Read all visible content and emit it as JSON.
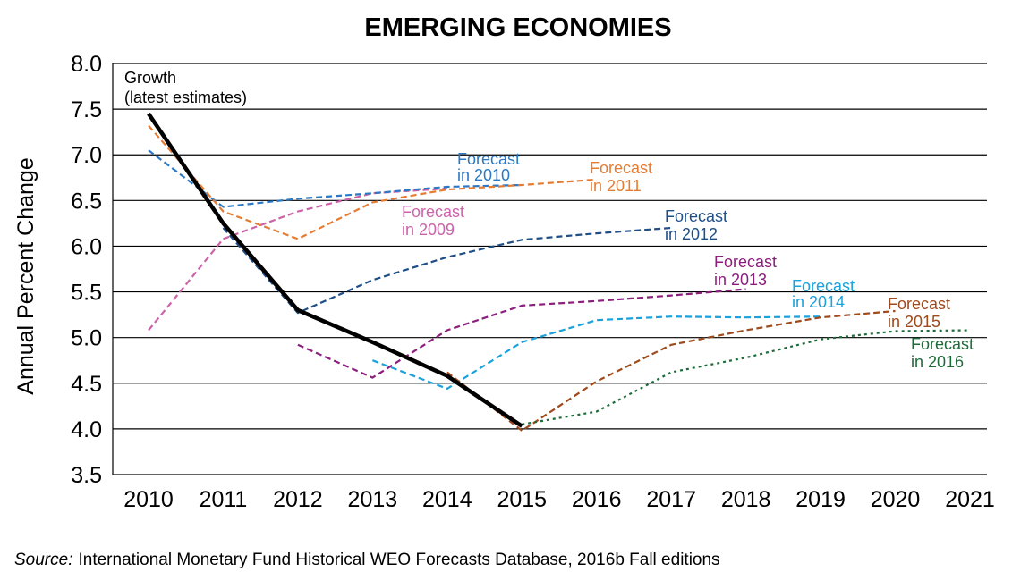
{
  "chart_data": {
    "type": "line",
    "title": "EMERGING ECONOMIES",
    "xlabel": "",
    "ylabel": "Annual Percent Change",
    "x": [
      2010,
      2011,
      2012,
      2013,
      2014,
      2015,
      2016,
      2017,
      2018,
      2019,
      2020,
      2021
    ],
    "xlim": [
      2010,
      2021
    ],
    "ylim": [
      3.5,
      8.0
    ],
    "yticks": [
      "3.5",
      "4.0",
      "4.5",
      "5.0",
      "5.5",
      "6.0",
      "6.5",
      "7.0",
      "7.5",
      "8.0"
    ],
    "grid": "horizontal",
    "series": [
      {
        "name": "Growth (latest estimates)",
        "label_lines": [
          "Growth",
          "(latest estimates)"
        ],
        "color": "#000000",
        "style": "solid",
        "points": [
          [
            2010,
            7.45
          ],
          [
            2011,
            6.25
          ],
          [
            2012,
            5.3
          ],
          [
            2013,
            4.95
          ],
          [
            2014,
            4.58
          ],
          [
            2015,
            4.03
          ]
        ]
      },
      {
        "name": "Forecast in 2009",
        "label_lines": [
          "Forecast",
          "in 2009"
        ],
        "color": "#cc63a8",
        "style": "dashed",
        "points": [
          [
            2010,
            5.08
          ],
          [
            2011,
            6.08
          ],
          [
            2012,
            6.38
          ],
          [
            2013,
            6.58
          ],
          [
            2014,
            6.63
          ]
        ]
      },
      {
        "name": "Forecast in 2010",
        "label_lines": [
          "Forecast",
          "in 2010"
        ],
        "color": "#2b78c4",
        "style": "dashed",
        "points": [
          [
            2010,
            7.05
          ],
          [
            2011,
            6.43
          ],
          [
            2012,
            6.52
          ],
          [
            2013,
            6.58
          ],
          [
            2014,
            6.65
          ],
          [
            2015,
            6.67
          ]
        ]
      },
      {
        "name": "Forecast in 2011",
        "label_lines": [
          "Forecast",
          "in 2011"
        ],
        "color": "#e57c34",
        "style": "dashed",
        "points": [
          [
            2010,
            7.32
          ],
          [
            2011,
            6.38
          ],
          [
            2012,
            6.08
          ],
          [
            2013,
            6.48
          ],
          [
            2014,
            6.62
          ],
          [
            2015,
            6.67
          ],
          [
            2016,
            6.73
          ]
        ]
      },
      {
        "name": "Forecast in 2012",
        "label_lines": [
          "Forecast",
          "in 2012"
        ],
        "color": "#1f4e87",
        "style": "dashed",
        "points": [
          [
            2011,
            6.2
          ],
          [
            2012,
            5.27
          ],
          [
            2013,
            5.63
          ],
          [
            2014,
            5.88
          ],
          [
            2015,
            6.07
          ],
          [
            2016,
            6.14
          ],
          [
            2017,
            6.2
          ]
        ]
      },
      {
        "name": "Forecast in 2013",
        "label_lines": [
          "Forecast",
          "in 2013"
        ],
        "color": "#8a1f7c",
        "style": "dashed",
        "points": [
          [
            2012,
            4.92
          ],
          [
            2013,
            4.56
          ],
          [
            2014,
            5.08
          ],
          [
            2015,
            5.35
          ],
          [
            2016,
            5.4
          ],
          [
            2017,
            5.46
          ],
          [
            2018,
            5.53
          ]
        ]
      },
      {
        "name": "Forecast in 2014",
        "label_lines": [
          "Forecast",
          "in 2014"
        ],
        "color": "#1ba1dc",
        "style": "dashed",
        "points": [
          [
            2013,
            4.75
          ],
          [
            2014,
            4.44
          ],
          [
            2015,
            4.95
          ],
          [
            2016,
            5.19
          ],
          [
            2017,
            5.23
          ],
          [
            2018,
            5.22
          ],
          [
            2019,
            5.23
          ]
        ]
      },
      {
        "name": "Forecast in 2015",
        "label_lines": [
          "Forecast",
          "in 2015"
        ],
        "color": "#9e4a1c",
        "style": "dashed",
        "points": [
          [
            2014,
            4.62
          ],
          [
            2015,
            3.98
          ],
          [
            2016,
            4.52
          ],
          [
            2017,
            4.92
          ],
          [
            2018,
            5.08
          ],
          [
            2019,
            5.22
          ],
          [
            2020,
            5.29
          ]
        ]
      },
      {
        "name": "Forecast in 2016",
        "label_lines": [
          "Forecast",
          "in 2016"
        ],
        "color": "#1e6b3a",
        "style": "dotted",
        "points": [
          [
            2015,
            4.05
          ],
          [
            2016,
            4.19
          ],
          [
            2017,
            4.62
          ],
          [
            2018,
            4.78
          ],
          [
            2019,
            4.98
          ],
          [
            2020,
            5.07
          ],
          [
            2021,
            5.08
          ]
        ]
      }
    ],
    "source_label": "Source:",
    "source_text": "International Monetary Fund Historical WEO Forecasts Database, 2016b Fall editions"
  }
}
